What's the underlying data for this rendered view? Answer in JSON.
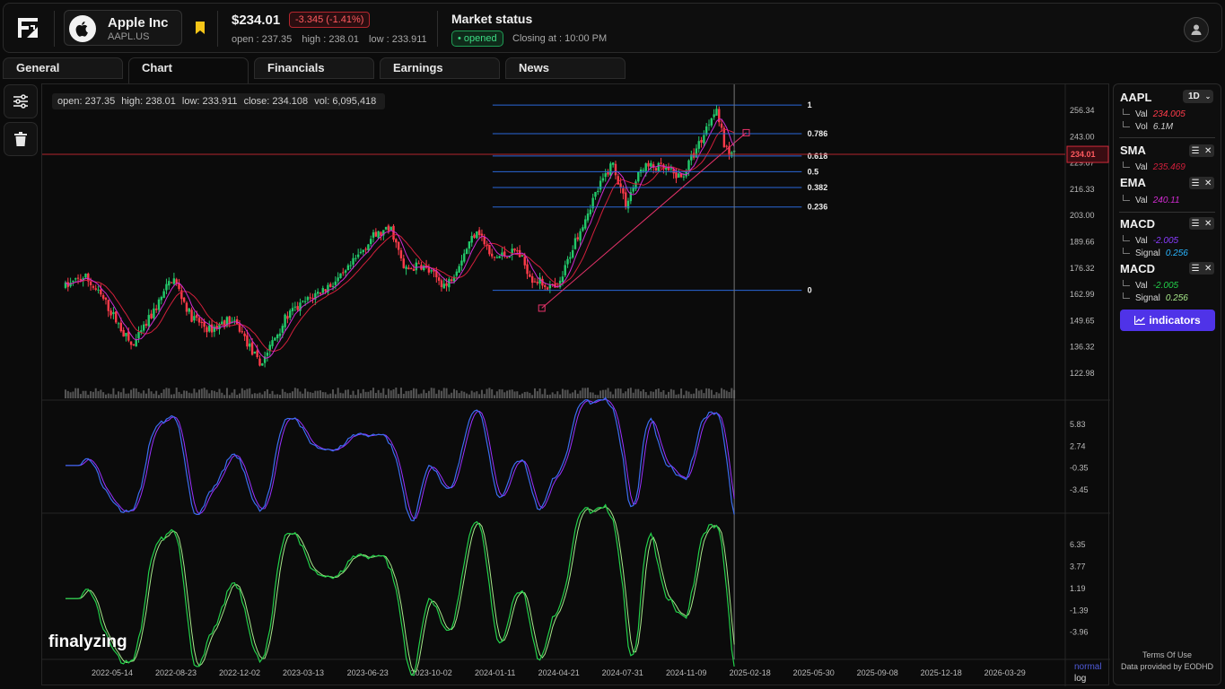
{
  "header": {
    "company_name": "Apple Inc",
    "ticker": "AAPL.US",
    "price": "$234.01",
    "change": "-3.345 (-1.41%)",
    "open": "open : 237.35",
    "high": "high : 238.01",
    "low": "low : 233.911",
    "market_title": "Market status",
    "market_state": "• opened",
    "closing": "Closing at : 10:00 PM"
  },
  "tabs": [
    {
      "label": "General",
      "active": false
    },
    {
      "label": "Chart",
      "active": true
    },
    {
      "label": "Financials",
      "active": false
    },
    {
      "label": "Earnings",
      "active": false
    },
    {
      "label": "News",
      "active": false
    }
  ],
  "tools": {
    "settings_icon": "sliders-icon",
    "delete_icon": "trash-icon"
  },
  "ohlc": {
    "open": "open: 237.35",
    "high": "high: 238.01",
    "low": "low: 233.911",
    "close": "close: 234.108",
    "vol": "vol: 6,095,418"
  },
  "chart_data": [
    {
      "type": "candlestick",
      "symbol": "AAPL",
      "last_price_label": "234.01",
      "y_ticks": [
        "256.34",
        "243.00",
        "229.67",
        "216.33",
        "203.00",
        "189.66",
        "176.32",
        "162.99",
        "149.65",
        "136.32",
        "122.98"
      ],
      "x_ticks": [
        "2022-05-14",
        "2022-08-23",
        "2022-12-02",
        "2023-03-13",
        "2023-06-23",
        "2023-10-02",
        "2024-01-11",
        "2024-04-21",
        "2024-07-31",
        "2024-11-09",
        "2025-02-18",
        "2025-05-30",
        "2025-09-08",
        "2025-12-18",
        "2026-03-29"
      ],
      "price_path": [
        [
          "2022-03-01",
          167
        ],
        [
          "2022-04-01",
          172
        ],
        [
          "2022-05-01",
          160
        ],
        [
          "2022-06-15",
          136
        ],
        [
          "2022-07-20",
          155
        ],
        [
          "2022-08-18",
          172
        ],
        [
          "2022-09-15",
          152
        ],
        [
          "2022-10-15",
          145
        ],
        [
          "2022-11-15",
          150
        ],
        [
          "2022-12-01",
          146
        ],
        [
          "2023-01-03",
          127
        ],
        [
          "2023-02-15",
          152
        ],
        [
          "2023-04-01",
          163
        ],
        [
          "2023-05-15",
          172
        ],
        [
          "2023-06-30",
          192
        ],
        [
          "2023-07-31",
          196
        ],
        [
          "2023-08-20",
          175
        ],
        [
          "2023-09-15",
          178
        ],
        [
          "2023-10-26",
          167
        ],
        [
          "2023-12-14",
          197
        ],
        [
          "2024-01-05",
          181
        ],
        [
          "2024-02-15",
          185
        ],
        [
          "2024-03-10",
          171
        ],
        [
          "2024-04-19",
          165
        ],
        [
          "2024-05-15",
          189
        ],
        [
          "2024-06-15",
          212
        ],
        [
          "2024-07-15",
          230
        ],
        [
          "2024-08-05",
          209
        ],
        [
          "2024-09-01",
          228
        ],
        [
          "2024-10-01",
          227
        ],
        [
          "2024-11-01",
          222
        ],
        [
          "2024-12-05",
          243
        ],
        [
          "2024-12-26",
          259
        ],
        [
          "2025-01-10",
          236
        ],
        [
          "2025-01-24",
          234
        ]
      ],
      "sma_label": "SMA",
      "ema_label": "EMA",
      "fibonacci": {
        "levels": [
          "1",
          "0.786",
          "0.618",
          "0.5",
          "0.382",
          "0.236",
          "0"
        ],
        "values": [
          259,
          244.5,
          233.2,
          225.2,
          217.2,
          207.3,
          165
        ]
      },
      "trendline": {
        "start": [
          "2024-03-25",
          156
        ],
        "end": [
          "2025-02-12",
          245
        ]
      },
      "crosshair_x": "2025-01-24",
      "volume_shown": true
    },
    {
      "type": "line",
      "name": "MACD",
      "y_ticks": [
        "5.83",
        "2.74",
        "-0.35",
        "-3.45"
      ],
      "line_color": "#3a6df0",
      "signal_color": "#9b30ff"
    },
    {
      "type": "line",
      "name": "MACD",
      "y_ticks": [
        "6.35",
        "3.77",
        "1.19",
        "-1.39",
        "-3.96"
      ],
      "line_color": "#22d04a",
      "signal_color": "#a7e88a"
    }
  ],
  "watermark": "finalyzing",
  "scale_modes": {
    "normal": "normal",
    "log": "log"
  },
  "panel": {
    "symbol": "AAPL",
    "timeframe": "1D",
    "aapl_val_label": "Val",
    "aapl_val": "234.005",
    "aapl_vol_label": "Vol",
    "aapl_vol": "6.1M",
    "sma": "SMA",
    "sma_val_label": "Val",
    "sma_val": "235.469",
    "ema": "EMA",
    "ema_val_label": "Val",
    "ema_val": "240.11",
    "macd1": "MACD",
    "macd1_val_label": "Val",
    "macd1_val": "-2.005",
    "macd1_sig_label": "Signal",
    "macd1_sig": "0.256",
    "macd2": "MACD",
    "macd2_val_label": "Val",
    "macd2_val": "-2.005",
    "macd2_sig_label": "Signal",
    "macd2_sig": "0.256",
    "indicators_btn": "indicators",
    "terms": "Terms Of Use",
    "provider": "Data provided by EODHD"
  },
  "colors": {
    "down": "#ff3b4a",
    "up": "#23c96b",
    "accent": "#4f33e8",
    "sma": "#d21f3c",
    "ema": "#d12bd1",
    "fib": "#2a67d8"
  }
}
